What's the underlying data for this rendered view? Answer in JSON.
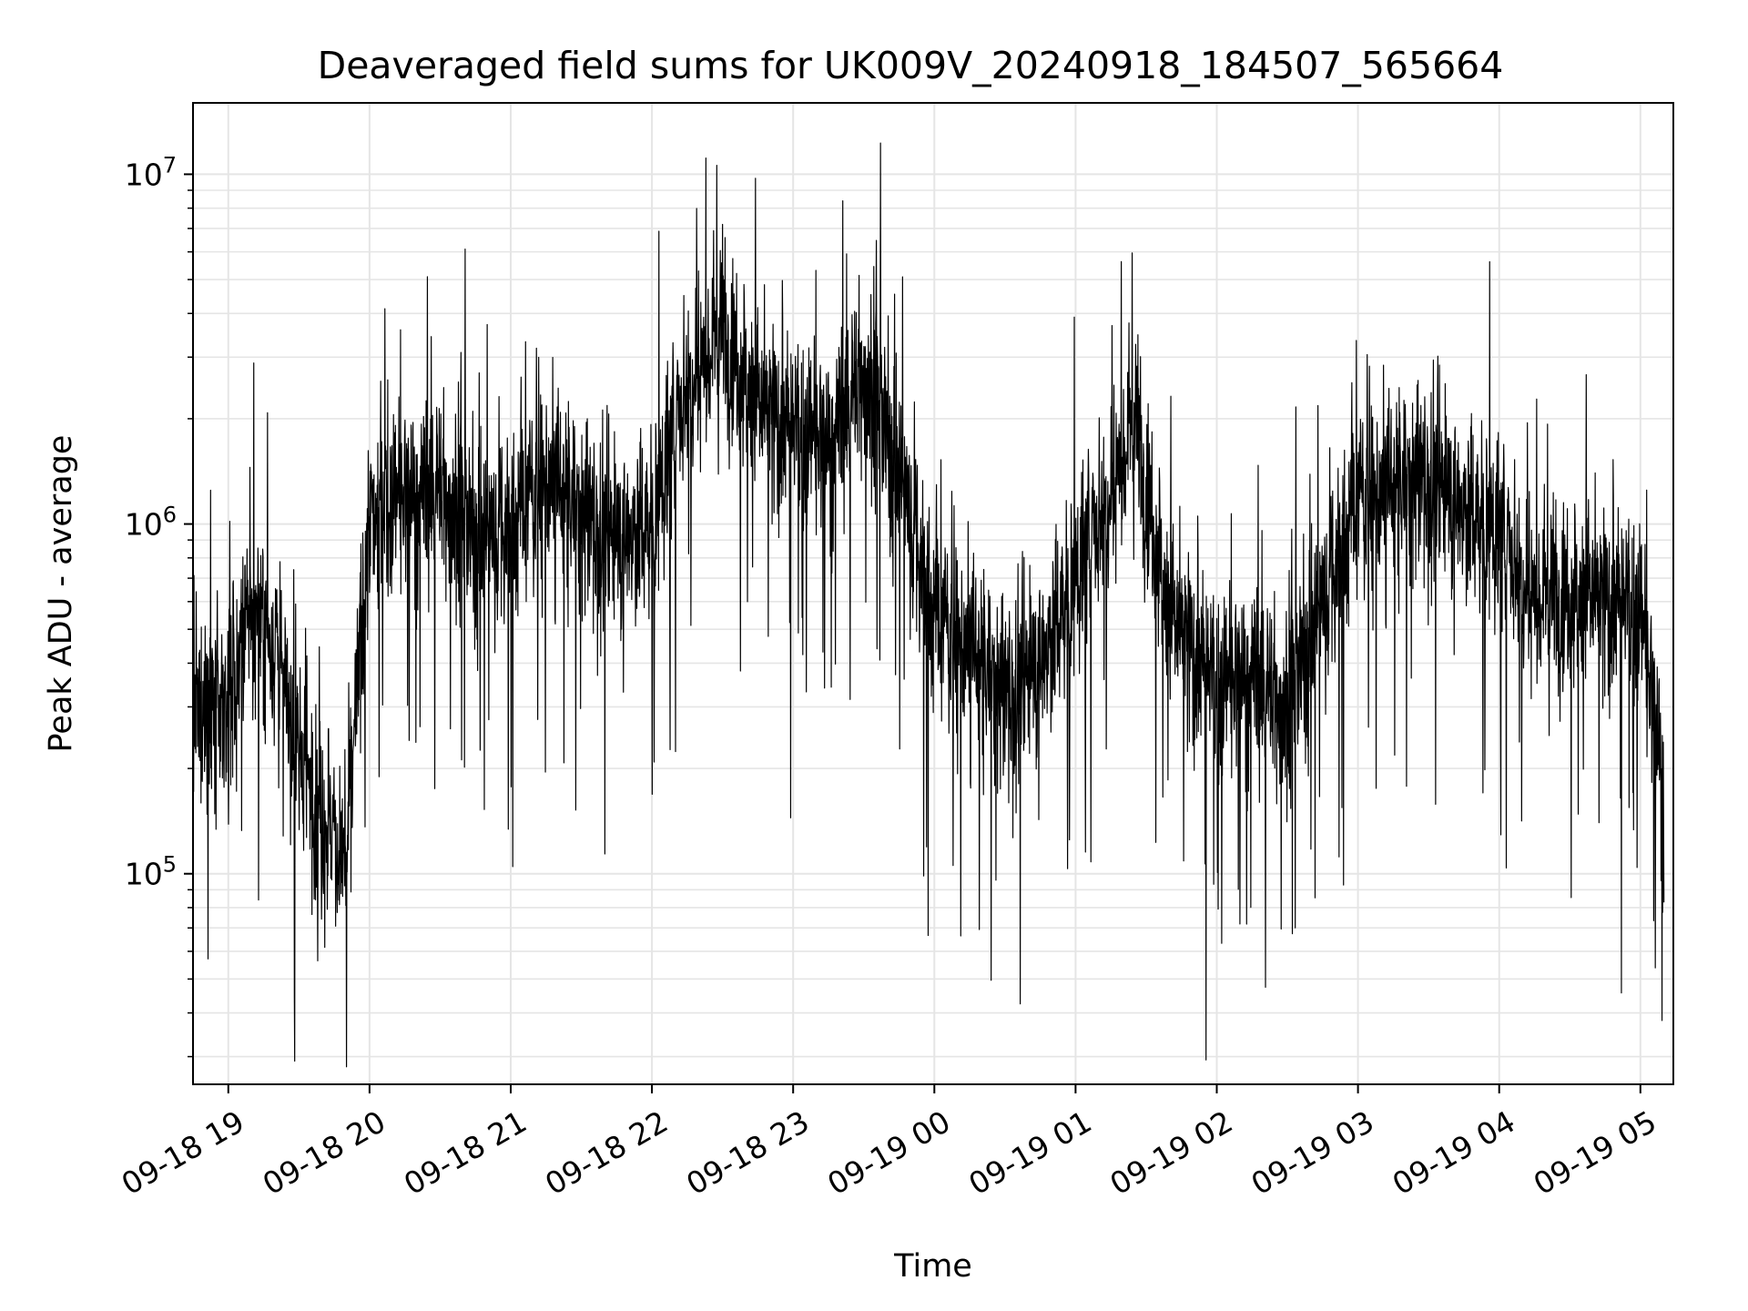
{
  "chart_data": {
    "type": "line",
    "title": "Deaveraged field sums for UK009V_20240918_184507_565664",
    "xlabel": "Time",
    "ylabel": "Peak ADU - average",
    "yscale": "log",
    "grid": true,
    "line_color": "#000000",
    "grid_color": "#e5e5e5",
    "x_tick_labels": [
      "09-18 19",
      "09-18 20",
      "09-18 21",
      "09-18 22",
      "09-18 23",
      "09-19 00",
      "09-19 01",
      "09-19 02",
      "09-19 03",
      "09-19 04",
      "09-19 05"
    ],
    "y_tick_labels": [
      {
        "base": "10",
        "exp": "5",
        "value": 100000
      },
      {
        "base": "10",
        "exp": "6",
        "value": 1000000
      },
      {
        "base": "10",
        "exp": "7",
        "value": 10000000
      }
    ],
    "xlim": [
      "2024-09-18 18:45",
      "2024-09-19 05:14"
    ],
    "ylim": [
      25000,
      16000000
    ],
    "series": [
      {
        "x": [
          "2024-09-18 18:45",
          "2024-09-18 19:00",
          "2024-09-18 19:10",
          "2024-09-18 19:20",
          "2024-09-18 19:30",
          "2024-09-18 19:40",
          "2024-09-18 19:50",
          "2024-09-18 20:00",
          "2024-09-18 20:15",
          "2024-09-18 20:30",
          "2024-09-18 20:45",
          "2024-09-18 21:00",
          "2024-09-18 21:15",
          "2024-09-18 21:30",
          "2024-09-18 21:45",
          "2024-09-18 22:00",
          "2024-09-18 22:15",
          "2024-09-18 22:30",
          "2024-09-18 22:45",
          "2024-09-18 23:00",
          "2024-09-18 23:15",
          "2024-09-18 23:30",
          "2024-09-18 23:45",
          "2024-09-19 00:00",
          "2024-09-19 00:15",
          "2024-09-19 00:30",
          "2024-09-19 00:45",
          "2024-09-19 01:00",
          "2024-09-19 01:15",
          "2024-09-19 01:25",
          "2024-09-19 01:40",
          "2024-09-19 02:00",
          "2024-09-19 02:15",
          "2024-09-19 02:30",
          "2024-09-19 02:45",
          "2024-09-19 03:00",
          "2024-09-19 03:15",
          "2024-09-19 03:30",
          "2024-09-19 03:45",
          "2024-09-19 04:00",
          "2024-09-19 04:15",
          "2024-09-19 04:30",
          "2024-09-19 04:45",
          "2024-09-19 05:00",
          "2024-09-19 05:10"
        ],
        "values": [
          280000,
          300000,
          550000,
          450000,
          220000,
          150000,
          110000,
          1000000,
          1200000,
          1300000,
          900000,
          1000000,
          1400000,
          1100000,
          900000,
          1000000,
          2600000,
          3800000,
          2200000,
          1800000,
          1700000,
          2800000,
          1400000,
          550000,
          450000,
          330000,
          400000,
          700000,
          1300000,
          2100000,
          550000,
          330000,
          380000,
          300000,
          600000,
          1200000,
          1300000,
          1400000,
          1100000,
          950000,
          650000,
          650000,
          600000,
          550000,
          180000
        ]
      }
    ]
  }
}
